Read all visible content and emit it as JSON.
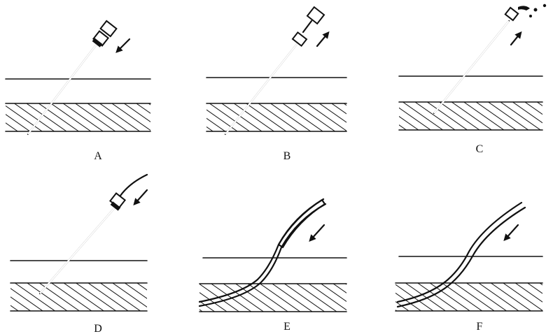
{
  "panels": [
    {
      "id": "A",
      "label": "A"
    },
    {
      "id": "B",
      "label": "B"
    },
    {
      "id": "C",
      "label": "C"
    },
    {
      "id": "D",
      "label": "D"
    },
    {
      "id": "E",
      "label": "E"
    },
    {
      "id": "F",
      "label": "F"
    }
  ],
  "colors": {
    "ink": "#111111",
    "background": "#ffffff"
  },
  "icons": [
    "needle-with-stylet",
    "stylet-withdrawn",
    "blood-return",
    "guidewire-inserted",
    "catheter-over-guidewire",
    "catheter-in-place",
    "direction-arrow"
  ]
}
